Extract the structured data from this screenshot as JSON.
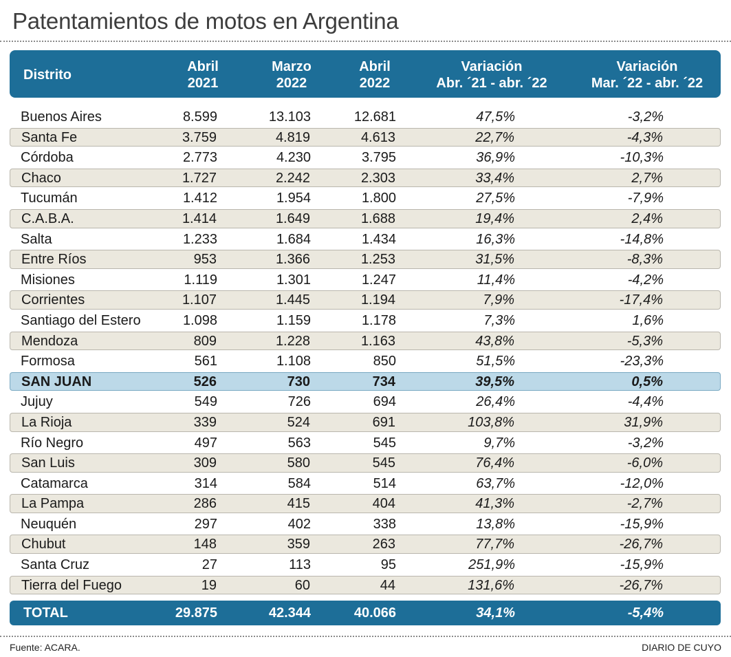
{
  "title": "Patentamientos de motos en Argentina",
  "colors": {
    "header_bg": "#1d6e98",
    "alt_row": "#ebe8de",
    "highlight_row": "#bcd9e8"
  },
  "table": {
    "headers": [
      {
        "line1": "Distrito",
        "line2": ""
      },
      {
        "line1": "Abril",
        "line2": "2021"
      },
      {
        "line1": "Marzo",
        "line2": "2022"
      },
      {
        "line1": "Abril",
        "line2": "2022"
      },
      {
        "line1": "Variación",
        "line2": "Abr. ´21 - abr. ´22"
      },
      {
        "line1": "Variación",
        "line2": "Mar. ´22 - abr. ´22"
      }
    ],
    "total": {
      "name": "TOTAL",
      "abr21": "29.875",
      "mar22": "42.344",
      "abr22": "40.066",
      "var1": "34,1%",
      "var2": "-5,4%"
    }
  },
  "chart_data": {
    "type": "table",
    "title": "Patentamientos de motos en Argentina",
    "columns": [
      "Distrito",
      "Abril 2021",
      "Marzo 2022",
      "Abril 2022",
      "Variación Abr. ´21 - abr. ´22",
      "Variación Mar. ´22 - abr. ´22"
    ],
    "highlighted_row": "SAN JUAN",
    "rows": [
      {
        "name": "Buenos Aires",
        "abr21": "8.599",
        "mar22": "13.103",
        "abr22": "12.681",
        "var1": "47,5%",
        "var2": "-3,2%"
      },
      {
        "name": "Santa Fe",
        "abr21": "3.759",
        "mar22": "4.819",
        "abr22": "4.613",
        "var1": "22,7%",
        "var2": "-4,3%"
      },
      {
        "name": "Córdoba",
        "abr21": "2.773",
        "mar22": "4.230",
        "abr22": "3.795",
        "var1": "36,9%",
        "var2": "-10,3%"
      },
      {
        "name": "Chaco",
        "abr21": "1.727",
        "mar22": "2.242",
        "abr22": "2.303",
        "var1": "33,4%",
        "var2": "2,7%"
      },
      {
        "name": "Tucumán",
        "abr21": "1.412",
        "mar22": "1.954",
        "abr22": "1.800",
        "var1": "27,5%",
        "var2": "-7,9%"
      },
      {
        "name": "C.A.B.A.",
        "abr21": "1.414",
        "mar22": "1.649",
        "abr22": "1.688",
        "var1": "19,4%",
        "var2": "2,4%"
      },
      {
        "name": "Salta",
        "abr21": "1.233",
        "mar22": "1.684",
        "abr22": "1.434",
        "var1": "16,3%",
        "var2": "-14,8%"
      },
      {
        "name": "Entre Ríos",
        "abr21": "953",
        "mar22": "1.366",
        "abr22": "1.253",
        "var1": "31,5%",
        "var2": "-8,3%"
      },
      {
        "name": "Misiones",
        "abr21": "1.119",
        "mar22": "1.301",
        "abr22": "1.247",
        "var1": "11,4%",
        "var2": "-4,2%"
      },
      {
        "name": "Corrientes",
        "abr21": "1.107",
        "mar22": "1.445",
        "abr22": "1.194",
        "var1": "7,9%",
        "var2": "-17,4%"
      },
      {
        "name": "Santiago del Estero",
        "abr21": "1.098",
        "mar22": "1.159",
        "abr22": "1.178",
        "var1": "7,3%",
        "var2": "1,6%"
      },
      {
        "name": "Mendoza",
        "abr21": "809",
        "mar22": "1.228",
        "abr22": "1.163",
        "var1": "43,8%",
        "var2": "-5,3%"
      },
      {
        "name": "Formosa",
        "abr21": "561",
        "mar22": "1.108",
        "abr22": "850",
        "var1": "51,5%",
        "var2": "-23,3%"
      },
      {
        "name": "SAN JUAN",
        "abr21": "526",
        "mar22": "730",
        "abr22": "734",
        "var1": "39,5%",
        "var2": "0,5%"
      },
      {
        "name": "Jujuy",
        "abr21": "549",
        "mar22": "726",
        "abr22": "694",
        "var1": "26,4%",
        "var2": "-4,4%"
      },
      {
        "name": "La Rioja",
        "abr21": "339",
        "mar22": "524",
        "abr22": "691",
        "var1": "103,8%",
        "var2": "31,9%"
      },
      {
        "name": "Río Negro",
        "abr21": "497",
        "mar22": "563",
        "abr22": "545",
        "var1": "9,7%",
        "var2": "-3,2%"
      },
      {
        "name": "San Luis",
        "abr21": "309",
        "mar22": "580",
        "abr22": "545",
        "var1": "76,4%",
        "var2": "-6,0%"
      },
      {
        "name": "Catamarca",
        "abr21": "314",
        "mar22": "584",
        "abr22": "514",
        "var1": "63,7%",
        "var2": "-12,0%"
      },
      {
        "name": "La Pampa",
        "abr21": "286",
        "mar22": "415",
        "abr22": "404",
        "var1": "41,3%",
        "var2": "-2,7%"
      },
      {
        "name": "Neuquén",
        "abr21": "297",
        "mar22": "402",
        "abr22": "338",
        "var1": "13,8%",
        "var2": "-15,9%"
      },
      {
        "name": "Chubut",
        "abr21": "148",
        "mar22": "359",
        "abr22": "263",
        "var1": "77,7%",
        "var2": "-26,7%"
      },
      {
        "name": "Santa Cruz",
        "abr21": "27",
        "mar22": "113",
        "abr22": "95",
        "var1": "251,9%",
        "var2": "-15,9%"
      },
      {
        "name": "Tierra del Fuego",
        "abr21": "19",
        "mar22": "60",
        "abr22": "44",
        "var1": "131,6%",
        "var2": "-26,7%"
      }
    ]
  },
  "footer": {
    "source": "Fuente: ACARA.",
    "brand": "DIARIO DE CUYO"
  }
}
